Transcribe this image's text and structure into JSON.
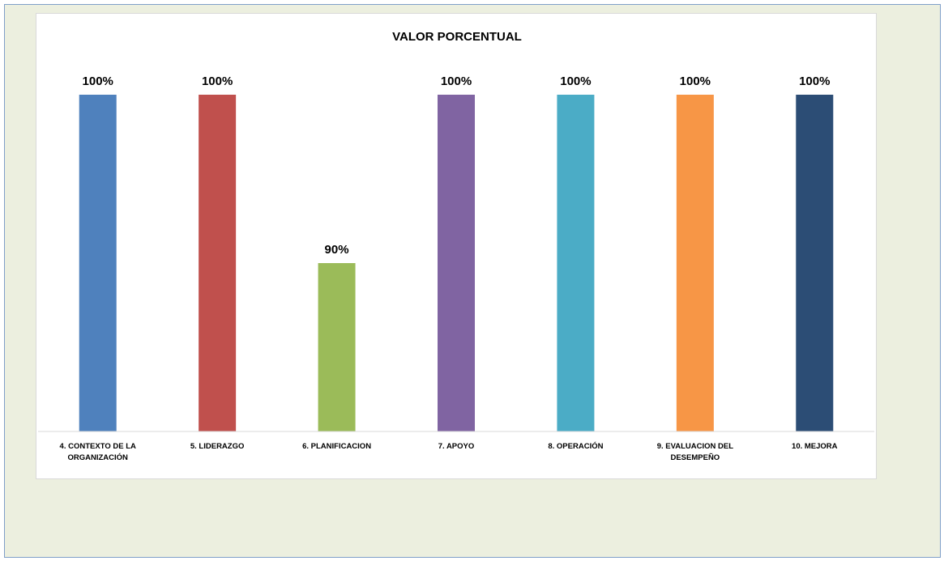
{
  "chart_data": {
    "type": "bar",
    "title": "VALOR PORCENTUAL",
    "categories": [
      [
        "4. CONTEXTO DE LA",
        "ORGANIZACIÓN"
      ],
      [
        "5. LIDERAZGO"
      ],
      [
        "6. PLANIFICACION"
      ],
      [
        "7. APOYO"
      ],
      [
        "8. OPERACIÓN"
      ],
      [
        "9. EVALUACION DEL",
        "DESEMPEÑO"
      ],
      [
        "10. MEJORA"
      ]
    ],
    "values": [
      100,
      100,
      90,
      100,
      100,
      100,
      100
    ],
    "data_labels": [
      "100%",
      "100%",
      "90%",
      "100%",
      "100%",
      "100%",
      "100%"
    ],
    "colors": [
      "#4f81bd",
      "#c0504d",
      "#9bbb59",
      "#8064a2",
      "#4bacc6",
      "#f79646",
      "#2c4d75"
    ],
    "ylim": [
      80,
      100
    ],
    "xlabel": "",
    "ylabel": "",
    "grid": false,
    "legend": "none"
  }
}
